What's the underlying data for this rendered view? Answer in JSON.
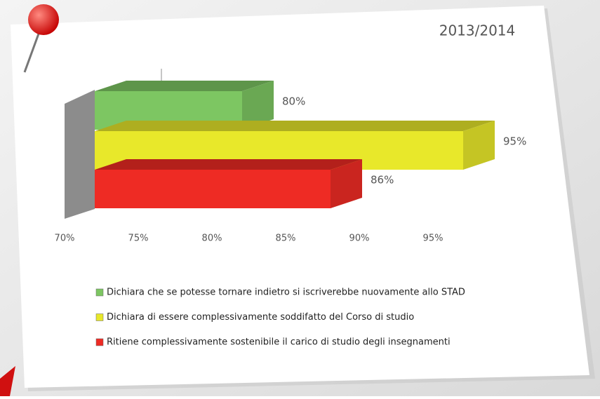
{
  "chart_data": {
    "type": "bar",
    "orientation": "horizontal",
    "title": "2013/2014",
    "categories": [
      null
    ],
    "series": [
      {
        "name": "Dichiara che se potesse tornare indietro si iscriverebbe nuovamente allo STAD",
        "color": "#7dc662",
        "values": [
          80
        ],
        "value_labels": [
          "80%"
        ]
      },
      {
        "name": "Dichiara di essere complessivamente  soddifatto  del  Corso di studio",
        "color": "#e8e82a",
        "values": [
          95
        ],
        "value_labels": [
          "95%"
        ]
      },
      {
        "name": "Ritiene complessivamente sostenibile  il carico di studio degli insegnamenti",
        "color": "#ee2b24",
        "values": [
          86
        ],
        "value_labels": [
          "86%"
        ]
      }
    ],
    "xlim": [
      70,
      95
    ],
    "xticks": [
      {
        "value": 70,
        "label": "70%"
      },
      {
        "value": 75,
        "label": "75%"
      },
      {
        "value": 80,
        "label": "80%"
      },
      {
        "value": 85,
        "label": "85%"
      },
      {
        "value": 90,
        "label": "90%"
      },
      {
        "value": 95,
        "label": "95%"
      }
    ],
    "legend": "bottom"
  }
}
